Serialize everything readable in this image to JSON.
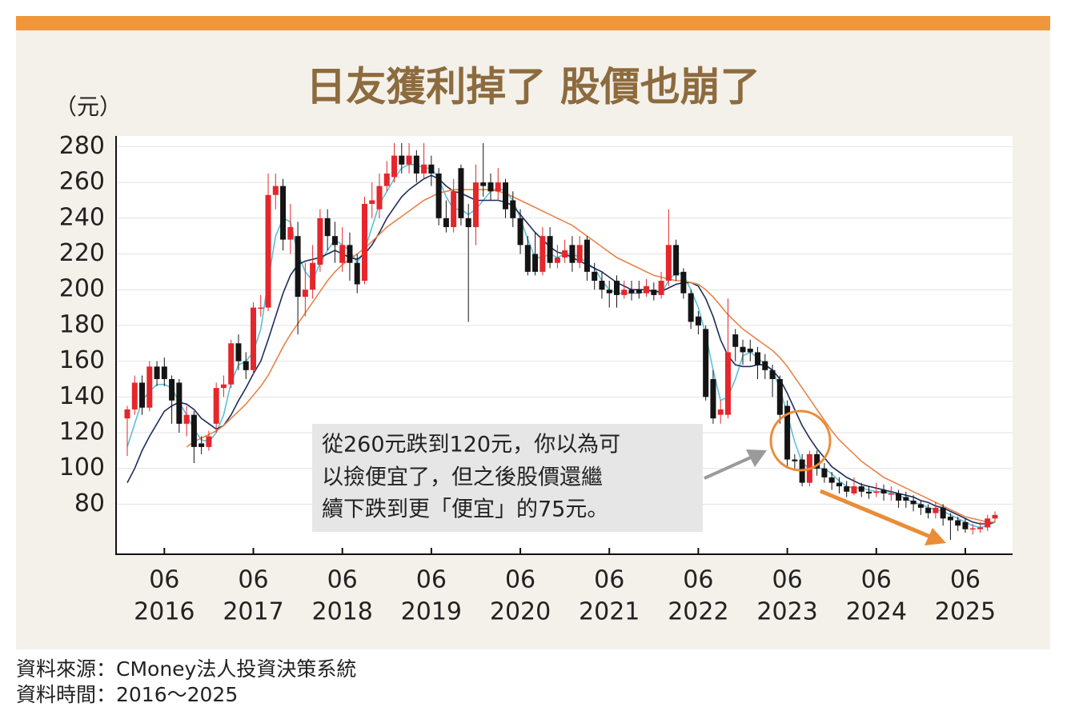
{
  "chart_data": {
    "type": "candlestick",
    "title": "日友獲利掉了 股價也崩了",
    "y_unit": "（元）",
    "categories": [
      "2016-01",
      "2016-02",
      "2016-03",
      "2016-04",
      "2016-05",
      "2016-06",
      "2016-07",
      "2016-08",
      "2016-09",
      "2016-10",
      "2016-11",
      "2016-12",
      "2017-01",
      "2017-02",
      "2017-03",
      "2017-04",
      "2017-05",
      "2017-06",
      "2017-07",
      "2017-08",
      "2017-09",
      "2017-10",
      "2017-11",
      "2017-12",
      "2018-01",
      "2018-02",
      "2018-03",
      "2018-04",
      "2018-05",
      "2018-06",
      "2018-07",
      "2018-08",
      "2018-09",
      "2018-10",
      "2018-11",
      "2018-12",
      "2019-01",
      "2019-02",
      "2019-03",
      "2019-04",
      "2019-05",
      "2019-06",
      "2019-07",
      "2019-08",
      "2019-09",
      "2019-10",
      "2019-11",
      "2019-12",
      "2020-01",
      "2020-02",
      "2020-03",
      "2020-04",
      "2020-05",
      "2020-06",
      "2020-07",
      "2020-08",
      "2020-09",
      "2020-10",
      "2020-11",
      "2020-12",
      "2021-01",
      "2021-02",
      "2021-03",
      "2021-04",
      "2021-05",
      "2021-06",
      "2021-07",
      "2021-08",
      "2021-09",
      "2021-10",
      "2021-11",
      "2021-12",
      "2022-01",
      "2022-02",
      "2022-03",
      "2022-04",
      "2022-05",
      "2022-06",
      "2022-07",
      "2022-08",
      "2022-09",
      "2022-10",
      "2022-11",
      "2022-12",
      "2023-01",
      "2023-02",
      "2023-03",
      "2023-04",
      "2023-05",
      "2023-06",
      "2023-07",
      "2023-08",
      "2023-09",
      "2023-10",
      "2023-11",
      "2023-12",
      "2024-01",
      "2024-02",
      "2024-03",
      "2024-04",
      "2024-05",
      "2024-06",
      "2024-07",
      "2024-08",
      "2024-09",
      "2024-10",
      "2024-11",
      "2024-12",
      "2025-01",
      "2025-02",
      "2025-03",
      "2025-04",
      "2025-05",
      "2025-06",
      "2025-07",
      "2025-08",
      "2025-09",
      "2025-10"
    ],
    "open": [
      128,
      133,
      148,
      134,
      157,
      157,
      150,
      148,
      125,
      130,
      114,
      112,
      125,
      145,
      147,
      170,
      160,
      155,
      190,
      190,
      253,
      258,
      228,
      230,
      196,
      200,
      214,
      240,
      230,
      215,
      225,
      215,
      205,
      248,
      245,
      258,
      263,
      275,
      270,
      275,
      265,
      270,
      265,
      240,
      235,
      268,
      240,
      235,
      260,
      260,
      255,
      260,
      250,
      240,
      225,
      220,
      210,
      230,
      215,
      218,
      225,
      215,
      228,
      210,
      205,
      200,
      205,
      197,
      200,
      200,
      198,
      200,
      197,
      205,
      225,
      210,
      198,
      185,
      178,
      150,
      130,
      130,
      175,
      168,
      167,
      165,
      160,
      155,
      150,
      135,
      105,
      105,
      92,
      108,
      100,
      95,
      92,
      90,
      86,
      90,
      87,
      87,
      88,
      86,
      86,
      84,
      82,
      80,
      78,
      75,
      78,
      73,
      71,
      70,
      66,
      66,
      67,
      72
    ],
    "high": [
      135,
      152,
      152,
      160,
      160,
      162,
      152,
      150,
      135,
      132,
      118,
      121,
      148,
      152,
      172,
      175,
      165,
      193,
      197,
      265,
      265,
      262,
      248,
      238,
      215,
      225,
      245,
      245,
      238,
      235,
      232,
      220,
      252,
      260,
      265,
      272,
      282,
      282,
      282,
      278,
      282,
      275,
      268,
      250,
      262,
      270,
      248,
      270,
      282,
      265,
      268,
      262,
      255,
      245,
      230,
      232,
      235,
      235,
      225,
      228,
      230,
      230,
      230,
      215,
      210,
      205,
      208,
      205,
      205,
      205,
      206,
      204,
      210,
      245,
      228,
      212,
      200,
      188,
      180,
      155,
      138,
      195,
      178,
      172,
      172,
      168,
      164,
      158,
      152,
      138,
      108,
      108,
      110,
      110,
      103,
      98,
      95,
      93,
      95,
      92,
      90,
      92,
      91,
      90,
      88,
      87,
      85,
      82,
      80,
      81,
      80,
      75,
      73,
      72,
      69,
      70,
      74,
      76
    ],
    "low": [
      107,
      130,
      130,
      132,
      146,
      146,
      125,
      120,
      118,
      103,
      108,
      110,
      120,
      140,
      145,
      155,
      150,
      152,
      185,
      188,
      245,
      222,
      220,
      175,
      185,
      195,
      210,
      222,
      215,
      210,
      205,
      198,
      203,
      240,
      240,
      255,
      260,
      265,
      265,
      260,
      262,
      258,
      236,
      232,
      232,
      236,
      182,
      225,
      252,
      250,
      250,
      240,
      235,
      220,
      208,
      208,
      208,
      212,
      212,
      215,
      210,
      212,
      205,
      200,
      195,
      190,
      190,
      195,
      194,
      195,
      196,
      194,
      195,
      202,
      205,
      195,
      178,
      175,
      138,
      125,
      125,
      128,
      160,
      158,
      160,
      150,
      150,
      140,
      125,
      100,
      100,
      90,
      90,
      96,
      92,
      88,
      86,
      84,
      85,
      84,
      83,
      84,
      82,
      82,
      78,
      78,
      76,
      74,
      72,
      72,
      68,
      60,
      65,
      64,
      63,
      64,
      65,
      70
    ],
    "close": [
      133,
      148,
      134,
      157,
      150,
      150,
      138,
      125,
      130,
      112,
      112,
      118,
      145,
      147,
      170,
      160,
      155,
      190,
      190,
      253,
      258,
      228,
      235,
      196,
      200,
      215,
      240,
      230,
      225,
      225,
      215,
      203,
      248,
      250,
      258,
      265,
      275,
      270,
      275,
      265,
      270,
      265,
      240,
      235,
      255,
      240,
      235,
      260,
      258,
      255,
      260,
      245,
      240,
      225,
      210,
      210,
      230,
      215,
      218,
      222,
      215,
      225,
      210,
      205,
      200,
      198,
      197,
      200,
      198,
      198,
      202,
      197,
      205,
      225,
      208,
      198,
      182,
      180,
      140,
      128,
      133,
      165,
      168,
      165,
      165,
      158,
      155,
      150,
      130,
      105,
      104,
      92,
      108,
      100,
      95,
      92,
      90,
      87,
      90,
      87,
      86,
      87,
      86,
      86,
      82,
      82,
      80,
      78,
      75,
      78,
      72,
      71,
      68,
      66,
      66.5,
      67,
      72,
      74
    ],
    "up_color": "#e5262b",
    "down_color": "#141414",
    "series": [
      {
        "color": "#5bc0d8",
        "values": [
          112,
          125,
          138,
          143,
          147,
          147,
          145,
          137,
          130,
          122,
          116,
          115,
          120,
          130,
          148,
          158,
          160,
          165,
          178,
          205,
          230,
          240,
          238,
          220,
          210,
          205,
          215,
          222,
          228,
          225,
          222,
          215,
          222,
          235,
          248,
          255,
          262,
          268,
          270,
          270,
          268,
          268,
          262,
          252,
          245,
          245,
          242,
          245,
          250,
          255,
          257,
          255,
          250,
          240,
          228,
          218,
          218,
          220,
          218,
          220,
          220,
          218,
          215,
          212,
          205,
          200,
          198,
          198,
          198,
          198,
          199,
          199,
          198,
          205,
          210,
          208,
          200,
          190,
          175,
          155,
          138,
          140,
          150,
          163,
          165,
          162,
          158,
          155,
          145,
          130,
          115,
          103,
          100,
          100,
          100,
          97,
          93,
          90,
          89,
          89,
          88,
          87,
          87,
          86,
          85,
          83,
          81,
          80,
          78,
          77,
          76,
          74,
          72,
          70,
          68,
          67,
          68,
          70
        ]
      },
      {
        "color": "#1f2d5c",
        "values": [
          92,
          100,
          110,
          118,
          125,
          132,
          135,
          137,
          136,
          133,
          128,
          125,
          122,
          124,
          130,
          138,
          145,
          153,
          160,
          172,
          185,
          198,
          208,
          214,
          216,
          217,
          218,
          220,
          222,
          220,
          218,
          217,
          220,
          225,
          232,
          240,
          246,
          252,
          256,
          259,
          262,
          264,
          262,
          258,
          255,
          254,
          252,
          250,
          250,
          250,
          250,
          249,
          247,
          242,
          237,
          232,
          228,
          224,
          221,
          220,
          218,
          216,
          214,
          212,
          210,
          207,
          204,
          202,
          200,
          200,
          200,
          199,
          199,
          201,
          203,
          204,
          204,
          202,
          195,
          185,
          172,
          163,
          158,
          157,
          157,
          158,
          158,
          155,
          150,
          142,
          133,
          124,
          117,
          111,
          106,
          101,
          98,
          95,
          93,
          91,
          90,
          89,
          88,
          87,
          86,
          85,
          84,
          82,
          81,
          79,
          78,
          76,
          74,
          72,
          70,
          69,
          69,
          70
        ]
      },
      {
        "color": "#e8834a",
        "values": [
          null,
          null,
          null,
          null,
          null,
          null,
          null,
          null,
          112,
          115,
          117,
          119,
          121,
          124,
          128,
          132,
          136,
          141,
          146,
          152,
          160,
          168,
          175,
          181,
          187,
          193,
          199,
          205,
          210,
          214,
          217,
          220,
          223,
          227,
          231,
          235,
          238,
          241,
          244,
          247,
          250,
          252,
          254,
          255,
          256,
          256,
          256,
          256,
          256,
          256,
          255,
          254,
          252,
          250,
          248,
          246,
          244,
          242,
          240,
          238,
          236,
          233,
          230,
          227,
          224,
          221,
          218,
          216,
          214,
          212,
          210,
          208,
          207,
          206,
          205,
          205,
          204,
          203,
          200,
          196,
          191,
          186,
          182,
          178,
          175,
          172,
          169,
          166,
          162,
          157,
          151,
          145,
          139,
          133,
          127,
          121,
          116,
          112,
          108,
          104,
          101,
          98,
          95,
          93,
          91,
          89,
          87,
          85,
          83,
          81,
          79,
          77,
          75,
          73,
          72,
          71,
          70,
          70
        ]
      }
    ],
    "ylim": [
      52,
      286
    ],
    "yticks": [
      80,
      100,
      120,
      140,
      160,
      180,
      200,
      220,
      240,
      260,
      280
    ],
    "xticks": [
      {
        "value": "2016-06",
        "label": "06",
        "year": "2016"
      },
      {
        "value": "2017-06",
        "label": "06",
        "year": "2017"
      },
      {
        "value": "2018-06",
        "label": "06",
        "year": "2018"
      },
      {
        "value": "2019-06",
        "label": "06",
        "year": "2019"
      },
      {
        "value": "2020-06",
        "label": "06",
        "year": "2020"
      },
      {
        "value": "2021-06",
        "label": "06",
        "year": "2021"
      },
      {
        "value": "2022-06",
        "label": "06",
        "year": "2022"
      },
      {
        "value": "2023-06",
        "label": "06",
        "year": "2023"
      },
      {
        "value": "2024-06",
        "label": "06",
        "year": "2024"
      },
      {
        "value": "2025-06",
        "label": "06",
        "year": "2025"
      }
    ],
    "grid": true,
    "annotation": [
      "從260元跌到120元，你以為可",
      "以撿便宜了，但之後股價還繼",
      "續下跌到更「便宜」的75元。"
    ],
    "source": "資料來源：CMoney法人投資決策系統",
    "data_time": "資料時間：2016～2025"
  }
}
